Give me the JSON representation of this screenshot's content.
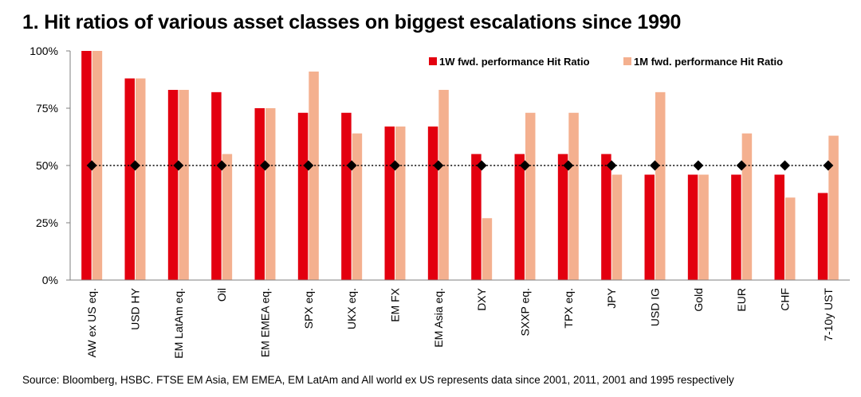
{
  "title": "1. Hit ratios of various asset classes on biggest escalations since 1990",
  "source": "Source: Bloomberg, HSBC. FTSE EM Asia, EM EMEA, EM LatAm and All world ex US represents data since 2001, 2011, 2001 and 1995 respectively",
  "chart_data": {
    "type": "bar",
    "title": "1. Hit ratios of various asset classes on biggest escalations since 1990",
    "xlabel": "",
    "ylabel": "",
    "ylim": [
      0,
      100
    ],
    "yticks": [
      0,
      25,
      50,
      75,
      100
    ],
    "ytick_labels": [
      "0%",
      "25%",
      "50%",
      "75%",
      "100%"
    ],
    "grid": false,
    "legend_position": "top-right",
    "categories": [
      "AW ex US eq.",
      "USD HY",
      "EM LatAm eq.",
      "Oil",
      "EM EMEA eq.",
      "SPX eq.",
      "UKX eq.",
      "EM FX",
      "EM Asia eq.",
      "DXY",
      "SXXP eq.",
      "TPX eq.",
      "JPY",
      "USD IG",
      "Gold",
      "EUR",
      "CHF",
      "7-10y UST"
    ],
    "series": [
      {
        "name": "1W fwd. performance Hit Ratio",
        "color": "#e3000f",
        "values": [
          100,
          88,
          83,
          82,
          75,
          73,
          73,
          67,
          67,
          55,
          55,
          55,
          55,
          46,
          46,
          46,
          46,
          38
        ]
      },
      {
        "name": "1M fwd. performance Hit Ratio",
        "color": "#f4b08f",
        "values": [
          100,
          88,
          83,
          55,
          75,
          91,
          64,
          67,
          83,
          27,
          73,
          73,
          46,
          82,
          46,
          64,
          36,
          63
        ]
      }
    ],
    "reference_line": {
      "value": 50,
      "style": "dotted",
      "marker": "diamond",
      "color": "#000000"
    }
  }
}
